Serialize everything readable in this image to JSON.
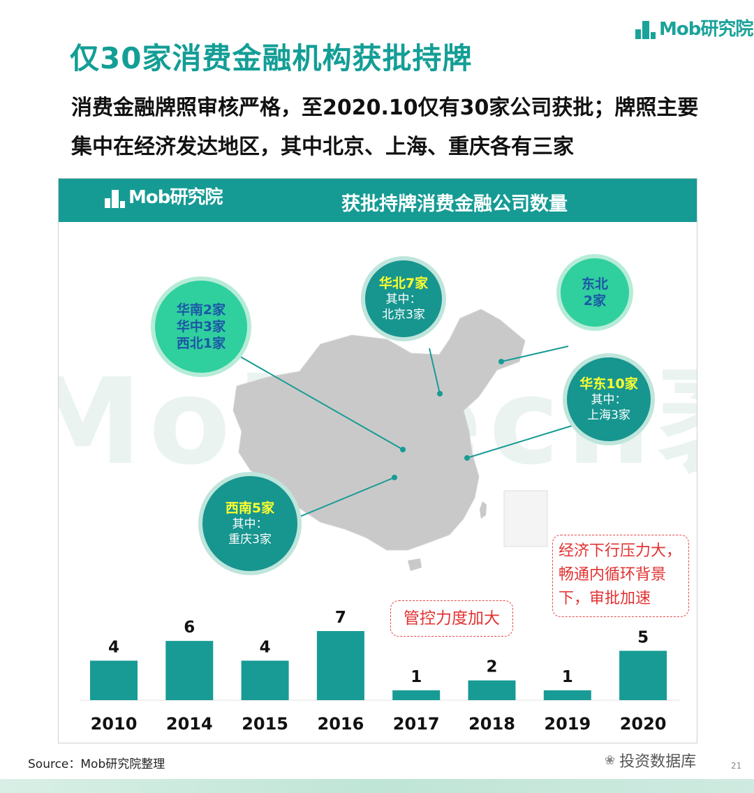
{
  "brand": {
    "logo_text": "Mob研究院",
    "watermark": "MobTech袤博"
  },
  "page": {
    "title": "仅30家消费金融机构获批持牌",
    "subtitle": "消费金融牌照审核严格，至2020.10仅有30家公司获批；牌照主要集中在经济发达地区，其中北京、上海、重庆各有三家",
    "page_number": "21"
  },
  "panel": {
    "title": "获批持牌消费金融公司数量"
  },
  "regions": {
    "south_central_northwest": {
      "lines": [
        "华南2家",
        "华中3家",
        "西北1家"
      ]
    },
    "north": {
      "title": "华北7家",
      "sub1": "其中：",
      "sub2": "北京3家"
    },
    "northeast": {
      "lines": [
        "东北",
        "2家"
      ]
    },
    "east": {
      "title": "华东10家",
      "sub1": "其中：",
      "sub2": "上海3家"
    },
    "southwest": {
      "title": "西南5家",
      "sub1": "其中：",
      "sub2": "重庆3家"
    }
  },
  "annotations": {
    "control": "管控力度加大",
    "economy": [
      "经济下行压力大，",
      "畅通内循环背景",
      "下，审批加速"
    ]
  },
  "chart_data": {
    "type": "bar",
    "title": "获批持牌消费金融公司数量",
    "categories": [
      "2010",
      "2014",
      "2015",
      "2016",
      "2017",
      "2018",
      "2019",
      "2020"
    ],
    "values": [
      4,
      6,
      4,
      7,
      1,
      2,
      1,
      5
    ],
    "ylim": [
      0,
      7
    ],
    "legend": "none",
    "grid": false
  },
  "footer": {
    "source": "Source：Mob研究院整理",
    "wechat": "投资数据库",
    "wechat_icon": "wechat-icon"
  },
  "colors": {
    "teal": "#159b94",
    "title_teal": "#139e96",
    "bar": "#189b95",
    "bubble_dark": "#17958f",
    "bubble_light": "#2fcf9e",
    "highlight_yellow": "#ffff2e",
    "note_red": "#e23232",
    "map_gray": "#c9c9c9"
  }
}
